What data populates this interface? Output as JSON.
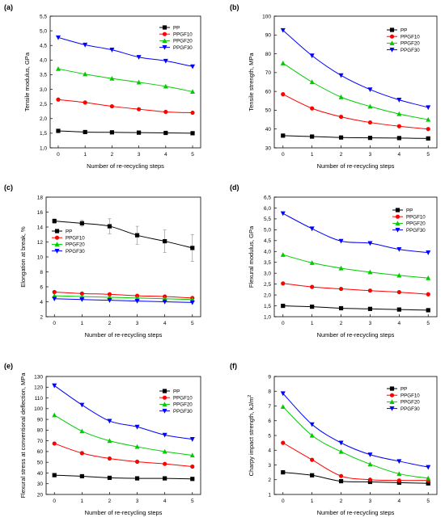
{
  "series_names": [
    "PP",
    "PPGF10",
    "PPGF20",
    "PPGF30"
  ],
  "series_colors": [
    "#000000",
    "#ff0000",
    "#00cc00",
    "#0000ff"
  ],
  "chart_data": [
    {
      "panel": "(a)",
      "type": "line",
      "xlabel": "Number of re-recycling steps",
      "ylabel": "Tensile modulus, GPa",
      "x": [
        0,
        1,
        2,
        3,
        4,
        5
      ],
      "xlim": [
        -0.3,
        5.3
      ],
      "xticks": [
        "0",
        "1",
        "2",
        "3",
        "4",
        "5"
      ],
      "ylim": [
        1.0,
        5.5
      ],
      "yticks": [
        "1,0",
        "1,5",
        "2,0",
        "2,5",
        "3,0",
        "3,5",
        "4,0",
        "4,5",
        "5,0",
        "5,5"
      ],
      "legend_position": "top-right",
      "grid": false,
      "series": [
        {
          "name": "PP",
          "values": [
            1.58,
            1.54,
            1.53,
            1.52,
            1.51,
            1.5
          ]
        },
        {
          "name": "PPGF10",
          "values": [
            2.65,
            2.55,
            2.42,
            2.32,
            2.23,
            2.2
          ]
        },
        {
          "name": "PPGF20",
          "values": [
            3.7,
            3.52,
            3.37,
            3.24,
            3.1,
            2.92
          ]
        },
        {
          "name": "PPGF30",
          "values": [
            4.77,
            4.52,
            4.35,
            4.1,
            3.97,
            3.78
          ]
        }
      ]
    },
    {
      "panel": "(b)",
      "type": "line",
      "xlabel": "Number of re-recycling steps",
      "ylabel": "Tensile strength, MPa",
      "x": [
        0,
        1,
        2,
        3,
        4,
        5
      ],
      "xlim": [
        -0.3,
        5.3
      ],
      "xticks": [
        "0",
        "1",
        "2",
        "3",
        "4",
        "5"
      ],
      "ylim": [
        30,
        100
      ],
      "yticks": [
        "30",
        "40",
        "50",
        "60",
        "70",
        "80",
        "90",
        "100"
      ],
      "legend_position": "top-right",
      "grid": false,
      "series": [
        {
          "name": "PP",
          "values": [
            36.5,
            36.0,
            35.5,
            35.3,
            35.2,
            35.0
          ]
        },
        {
          "name": "PPGF10",
          "values": [
            58.5,
            51.0,
            46.5,
            43.5,
            41.5,
            40.0
          ]
        },
        {
          "name": "PPGF20",
          "values": [
            75.0,
            65.0,
            57.0,
            52.0,
            48.0,
            45.0
          ]
        },
        {
          "name": "PPGF30",
          "values": [
            92.5,
            79.0,
            68.5,
            61.0,
            55.5,
            51.5
          ]
        }
      ]
    },
    {
      "panel": "(c)",
      "type": "line",
      "xlabel": "Number of re-recycling steps",
      "ylabel": "Elongation at break, %",
      "x": [
        0,
        1,
        2,
        3,
        4,
        5
      ],
      "xlim": [
        -0.3,
        5.3
      ],
      "xticks": [
        "0",
        "1",
        "2",
        "3",
        "4",
        "5"
      ],
      "ylim": [
        2,
        18
      ],
      "yticks": [
        "2",
        "4",
        "6",
        "8",
        "10",
        "12",
        "14",
        "16",
        "18"
      ],
      "legend_position": "center-left",
      "grid": false,
      "series": [
        {
          "name": "PP",
          "values": [
            14.8,
            14.5,
            14.1,
            12.9,
            12.1,
            11.2
          ],
          "errors": [
            0.3,
            0.4,
            1.0,
            1.2,
            1.5,
            1.8
          ]
        },
        {
          "name": "PPGF10",
          "values": [
            5.3,
            5.1,
            5.0,
            4.8,
            4.7,
            4.5
          ]
        },
        {
          "name": "PPGF20",
          "values": [
            4.8,
            4.7,
            4.6,
            4.5,
            4.4,
            4.3
          ]
        },
        {
          "name": "PPGF30",
          "values": [
            4.4,
            4.3,
            4.2,
            4.1,
            4.0,
            3.9
          ]
        }
      ]
    },
    {
      "panel": "(d)",
      "type": "line",
      "xlabel": "Number of re-recycling steps",
      "ylabel": "Flexural modulus, GPa",
      "x": [
        0,
        1,
        2,
        3,
        4,
        5
      ],
      "xlim": [
        -0.3,
        5.3
      ],
      "xticks": [
        "0",
        "1",
        "2",
        "3",
        "4",
        "5"
      ],
      "ylim": [
        1.0,
        6.5
      ],
      "yticks": [
        "1,0",
        "1,5",
        "2,0",
        "2,5",
        "3,0",
        "3,5",
        "4,0",
        "4,5",
        "5,0",
        "5,5",
        "6,0",
        "6,5"
      ],
      "legend_position": "top-right",
      "grid": false,
      "series": [
        {
          "name": "PP",
          "values": [
            1.5,
            1.46,
            1.39,
            1.36,
            1.33,
            1.3
          ]
        },
        {
          "name": "PPGF10",
          "values": [
            2.53,
            2.37,
            2.28,
            2.2,
            2.13,
            2.03
          ]
        },
        {
          "name": "PPGF20",
          "values": [
            3.85,
            3.48,
            3.23,
            3.05,
            2.9,
            2.78
          ]
        },
        {
          "name": "PPGF30",
          "values": [
            5.75,
            5.05,
            4.48,
            4.38,
            4.1,
            3.95
          ]
        }
      ]
    },
    {
      "panel": "(e)",
      "type": "line",
      "xlabel": "Number of re-recycling steps",
      "ylabel": "Flexural stress at conventional deflection, MPa",
      "x": [
        0,
        1,
        2,
        3,
        4,
        5
      ],
      "xlim": [
        -0.3,
        5.3
      ],
      "xticks": [
        "0",
        "1",
        "2",
        "3",
        "4",
        "5"
      ],
      "ylim": [
        20,
        130
      ],
      "yticks": [
        "20",
        "30",
        "40",
        "50",
        "60",
        "70",
        "80",
        "90",
        "100",
        "110",
        "120",
        "130"
      ],
      "legend_position": "top-right",
      "grid": false,
      "series": [
        {
          "name": "PP",
          "values": [
            38.0,
            37.0,
            35.5,
            35.0,
            35.0,
            34.5
          ]
        },
        {
          "name": "PPGF10",
          "values": [
            67.5,
            58.5,
            53.5,
            50.5,
            48.5,
            46.0
          ]
        },
        {
          "name": "PPGF20",
          "values": [
            94.0,
            79.0,
            70.0,
            64.5,
            60.0,
            56.5
          ]
        },
        {
          "name": "PPGF30",
          "values": [
            121.5,
            103.5,
            88.5,
            83.0,
            75.5,
            71.5
          ]
        }
      ]
    },
    {
      "panel": "(f)",
      "type": "line",
      "xlabel": "Number of re-recycling steps",
      "ylabel": "Charpy impact strength, kJ/m",
      "ylabel_superscript": "2",
      "x": [
        0,
        1,
        2,
        3,
        4,
        5
      ],
      "xlim": [
        -0.3,
        5.3
      ],
      "xticks": [
        "0",
        "1",
        "2",
        "3",
        "4",
        "5"
      ],
      "ylim": [
        1,
        9
      ],
      "yticks": [
        "1",
        "2",
        "3",
        "4",
        "5",
        "6",
        "7",
        "8",
        "9"
      ],
      "legend_position": "top-right",
      "grid": false,
      "series": [
        {
          "name": "PP",
          "values": [
            2.5,
            2.3,
            1.9,
            1.85,
            1.8,
            1.75
          ]
        },
        {
          "name": "PPGF10",
          "values": [
            4.5,
            3.35,
            2.25,
            2.0,
            1.95,
            1.95
          ]
        },
        {
          "name": "PPGF20",
          "values": [
            6.95,
            5.0,
            3.9,
            3.05,
            2.4,
            2.1
          ]
        },
        {
          "name": "PPGF30",
          "values": [
            7.85,
            5.75,
            4.5,
            3.7,
            3.25,
            2.85
          ]
        }
      ]
    }
  ]
}
